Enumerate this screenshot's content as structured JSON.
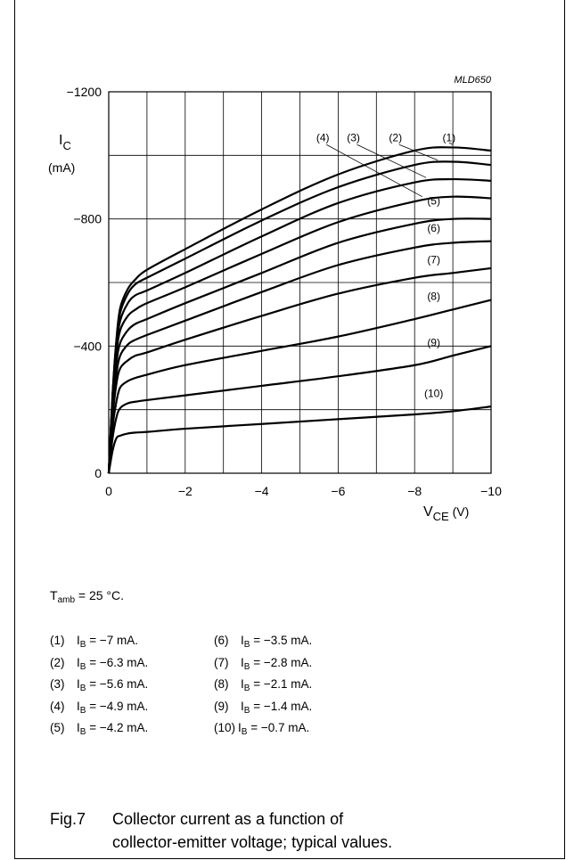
{
  "chart_data": {
    "type": "line",
    "id_label": "MLD650",
    "ylabel_main": "I",
    "ylabel_sub": "C",
    "ylabel_unit": "(mA)",
    "xlabel_main": "V",
    "xlabel_sub": "CE",
    "xlabel_unit": "(V)",
    "xlim": [
      0,
      -10
    ],
    "ylim": [
      0,
      -1200
    ],
    "x_ticks": [
      0,
      -2,
      -4,
      -6,
      -8,
      -10
    ],
    "x_tick_labels": [
      "0",
      "−2",
      "−4",
      "−6",
      "−8",
      "−10"
    ],
    "y_ticks": [
      0,
      -400,
      -800,
      -1200
    ],
    "y_tick_labels": [
      "0",
      "−400",
      "−800",
      "−1200"
    ],
    "grid": true,
    "series": [
      {
        "name": "(1)",
        "x": [
          0,
          -0.1,
          -0.2,
          -0.3,
          -0.5,
          -0.7,
          -1,
          -2,
          -4,
          -6,
          -8,
          -9,
          -10
        ],
        "y": [
          0,
          -250,
          -420,
          -520,
          -580,
          -610,
          -640,
          -705,
          -830,
          -940,
          -1015,
          -1025,
          -1015
        ]
      },
      {
        "name": "(2)",
        "x": [
          0,
          -0.1,
          -0.2,
          -0.3,
          -0.5,
          -0.7,
          -1,
          -2,
          -4,
          -6,
          -8,
          -9,
          -10
        ],
        "y": [
          0,
          -245,
          -410,
          -505,
          -565,
          -595,
          -615,
          -675,
          -795,
          -900,
          -970,
          -980,
          -970
        ]
      },
      {
        "name": "(3)",
        "x": [
          0,
          -0.1,
          -0.2,
          -0.3,
          -0.5,
          -0.7,
          -1,
          -2,
          -4,
          -6,
          -8,
          -9,
          -10
        ],
        "y": [
          0,
          -235,
          -395,
          -480,
          -535,
          -560,
          -575,
          -630,
          -745,
          -850,
          -915,
          -925,
          -920
        ]
      },
      {
        "name": "(4)",
        "x": [
          0,
          -0.1,
          -0.2,
          -0.3,
          -0.5,
          -0.7,
          -1,
          -2,
          -4,
          -6,
          -8,
          -9,
          -10
        ],
        "y": [
          0,
          -225,
          -375,
          -450,
          -495,
          -515,
          -535,
          -585,
          -690,
          -790,
          -855,
          -870,
          -865
        ]
      },
      {
        "name": "(5)",
        "x": [
          0,
          -0.1,
          -0.2,
          -0.3,
          -0.5,
          -0.7,
          -1,
          -2,
          -4,
          -6,
          -8,
          -9,
          -10
        ],
        "y": [
          0,
          -210,
          -345,
          -410,
          -450,
          -470,
          -485,
          -535,
          -630,
          -725,
          -785,
          -800,
          -800
        ]
      },
      {
        "name": "(6)",
        "x": [
          0,
          -0.1,
          -0.2,
          -0.3,
          -0.5,
          -0.7,
          -1,
          -2,
          -4,
          -6,
          -8,
          -9,
          -10
        ],
        "y": [
          0,
          -195,
          -310,
          -370,
          -405,
          -420,
          -435,
          -480,
          -570,
          -655,
          -710,
          -725,
          -730
        ]
      },
      {
        "name": "(7)",
        "x": [
          0,
          -0.1,
          -0.2,
          -0.3,
          -0.5,
          -0.7,
          -1,
          -2,
          -4,
          -6,
          -8,
          -9,
          -10
        ],
        "y": [
          0,
          -175,
          -280,
          -330,
          -355,
          -370,
          -380,
          -420,
          -495,
          -565,
          -615,
          -630,
          -645
        ]
      },
      {
        "name": "(8)",
        "x": [
          0,
          -0.1,
          -0.2,
          -0.3,
          -0.5,
          -0.7,
          -1,
          -2,
          -4,
          -6,
          -8,
          -9,
          -10
        ],
        "y": [
          0,
          -145,
          -225,
          -270,
          -290,
          -300,
          -310,
          -340,
          -385,
          -430,
          -485,
          -515,
          -545
        ]
      },
      {
        "name": "(9)",
        "x": [
          0,
          -0.1,
          -0.2,
          -0.3,
          -0.5,
          -0.7,
          -1,
          -2,
          -4,
          -6,
          -8,
          -9,
          -10
        ],
        "y": [
          0,
          -110,
          -175,
          -205,
          -220,
          -225,
          -230,
          -245,
          -275,
          -305,
          -340,
          -370,
          -400
        ]
      },
      {
        "name": "(10)",
        "x": [
          0,
          -0.1,
          -0.2,
          -0.3,
          -0.5,
          -0.7,
          -1,
          -2,
          -4,
          -6,
          -8,
          -9,
          -10
        ],
        "y": [
          0,
          -70,
          -110,
          -118,
          -125,
          -128,
          -130,
          -140,
          -155,
          -170,
          -185,
          -195,
          -210
        ]
      }
    ],
    "annotations": [
      {
        "text": "(1)",
        "x": -8.9,
        "y": -1045,
        "target_x": -8.9,
        "target_y": -1040
      },
      {
        "text": "(2)",
        "x": -7.5,
        "y": -1045,
        "target_x": -8.6,
        "target_y": -985
      },
      {
        "text": "(3)",
        "x": -6.4,
        "y": -1045,
        "target_x": -8.3,
        "target_y": -930
      },
      {
        "text": "(4)",
        "x": -5.6,
        "y": -1045,
        "target_x": -8.2,
        "target_y": -870
      },
      {
        "text": "(5)",
        "x": -8.5,
        "y": -845
      },
      {
        "text": "(6)",
        "x": -8.5,
        "y": -760
      },
      {
        "text": "(7)",
        "x": -8.5,
        "y": -660
      },
      {
        "text": "(8)",
        "x": -8.5,
        "y": -545
      },
      {
        "text": "(9)",
        "x": -8.5,
        "y": -400
      },
      {
        "text": "(10)",
        "x": -8.5,
        "y": -240
      }
    ]
  },
  "conditions": {
    "tamb_main": "T",
    "tamb_sub": "amb",
    "tamb_rest": " = 25 °C."
  },
  "legend": {
    "rows": [
      {
        "left_num": "(1)",
        "left_val": " = −7 mA.",
        "right_num": "(6)",
        "right_val": " = −3.5 mA."
      },
      {
        "left_num": "(2)",
        "left_val": " = −6.3 mA.",
        "right_num": "(7)",
        "right_val": " = −2.8 mA."
      },
      {
        "left_num": "(3)",
        "left_val": " = −5.6 mA.",
        "right_num": "(8)",
        "right_val": " = −2.1 mA."
      },
      {
        "left_num": "(4)",
        "left_val": " = −4.9 mA.",
        "right_num": "(9)",
        "right_val": " = −1.4 mA."
      },
      {
        "left_num": "(5)",
        "left_val": " = −4.2 mA.",
        "right_num": "(10)",
        "right_val": " = −0.7 mA."
      }
    ],
    "symbol_main": "I",
    "symbol_sub": "B"
  },
  "caption": {
    "fig": "Fig.7",
    "line1": "Collector current as a function of",
    "line2": "collector-emitter voltage; typical values."
  }
}
